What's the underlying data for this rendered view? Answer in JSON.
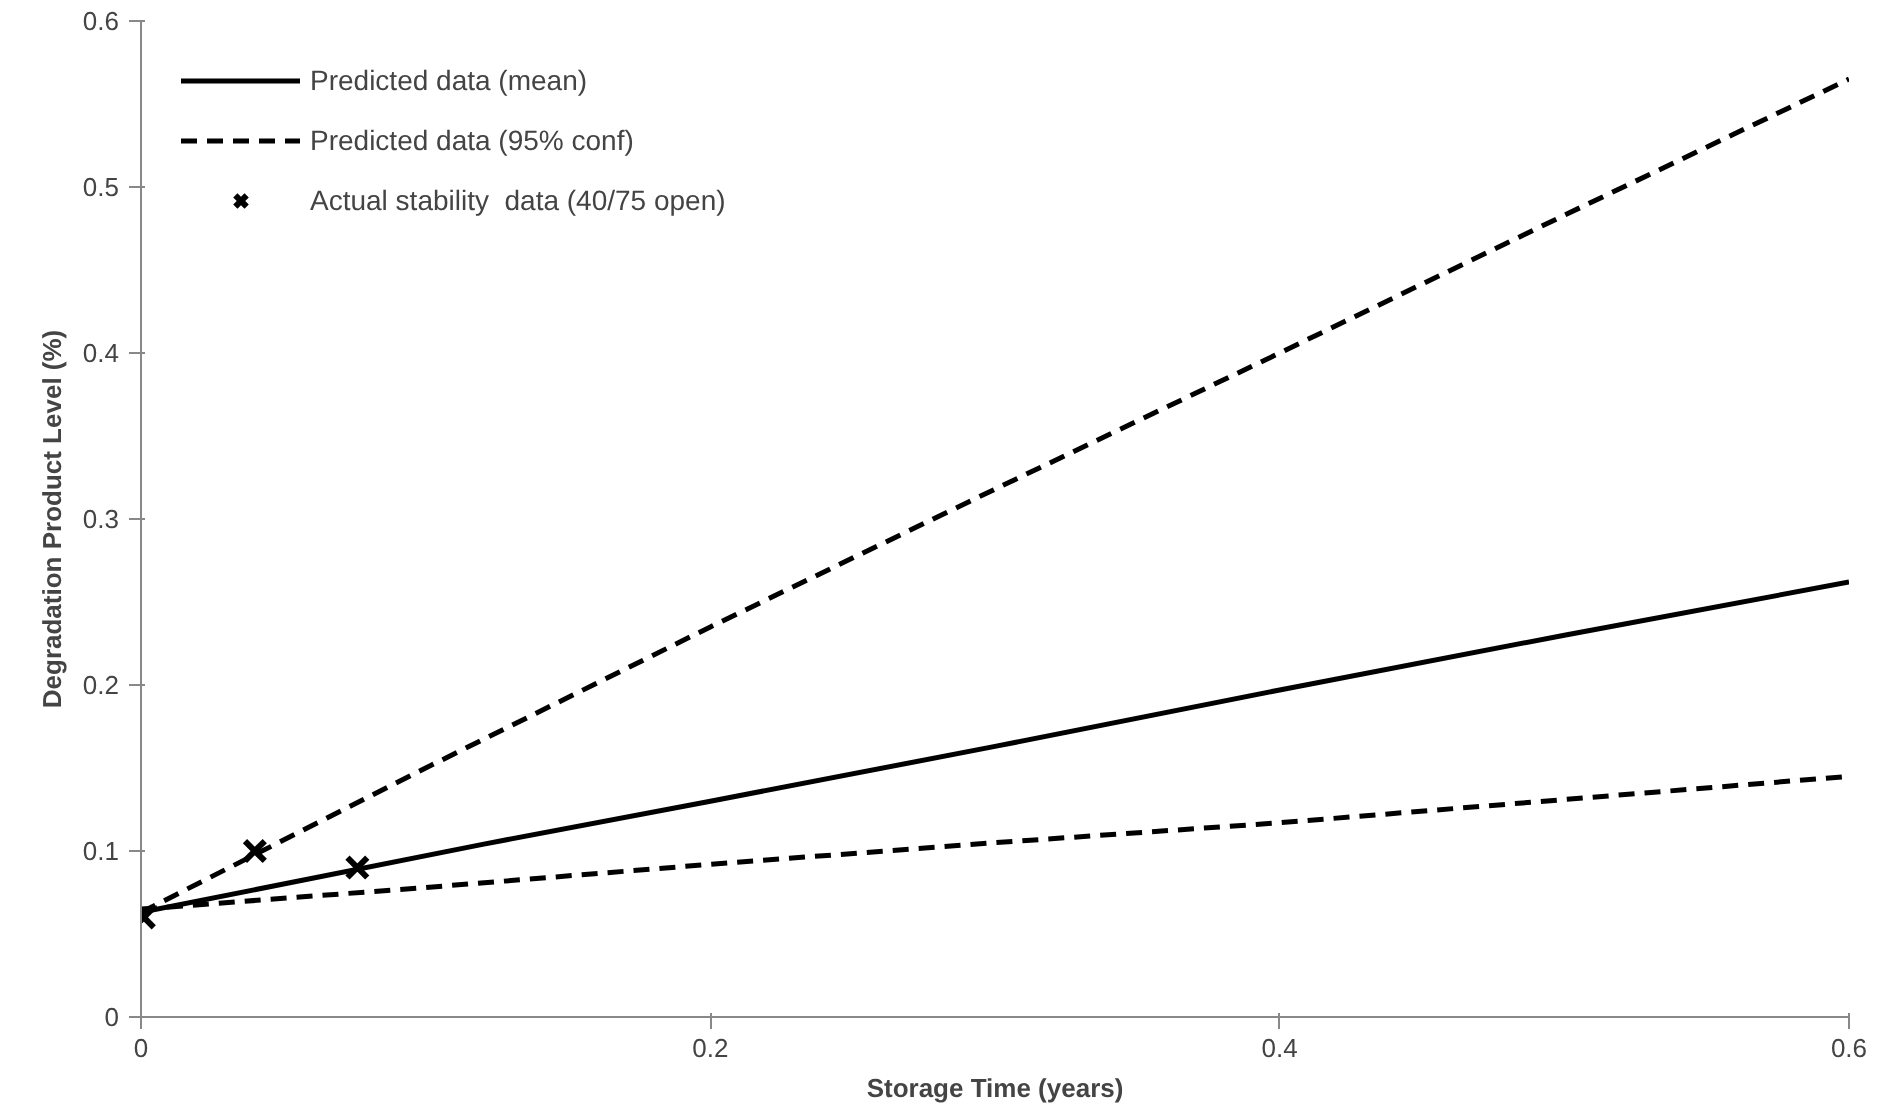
{
  "chart_data": {
    "type": "line",
    "xlabel": "Storage Time (years)",
    "ylabel": "Degradation Product Level (%)",
    "xlim": [
      0,
      0.6
    ],
    "ylim": [
      0,
      0.6
    ],
    "xticks": [
      0,
      0.2,
      0.4,
      0.6
    ],
    "yticks": [
      0,
      0.1,
      0.2,
      0.3,
      0.4,
      0.5,
      0.6
    ],
    "grid": false,
    "legend": "top left",
    "series": [
      {
        "name": "Predicted data (mean)",
        "color": "#000000",
        "line_style": "solid",
        "x": [
          0,
          0.12,
          0.2,
          0.3,
          0.4,
          0.5,
          0.6
        ],
        "values": [
          0.063,
          0.104,
          0.13,
          0.163,
          0.197,
          0.23,
          0.262
        ]
      },
      {
        "name": "Predicted data (95% conf)",
        "color": "#000000",
        "line_style": "dashed",
        "x": [
          0,
          0.1,
          0.2,
          0.3,
          0.4,
          0.5,
          0.6
        ],
        "values": [
          0.063,
          0.15,
          0.235,
          0.318,
          0.4,
          0.483,
          0.565
        ]
      },
      {
        "color": "#000000",
        "line_style": "dashed",
        "x": [
          0,
          0.1,
          0.2,
          0.3,
          0.4,
          0.5,
          0.6
        ],
        "values": [
          0.065,
          0.078,
          0.092,
          0.105,
          0.117,
          0.131,
          0.145
        ]
      },
      {
        "name": "Actual stability  data (40/75 open)",
        "type": "scatter",
        "marker": "cross",
        "color": "#000000",
        "x": [
          0.001,
          0.04,
          0.076
        ],
        "values": [
          0.06,
          0.1,
          0.09
        ]
      }
    ]
  }
}
